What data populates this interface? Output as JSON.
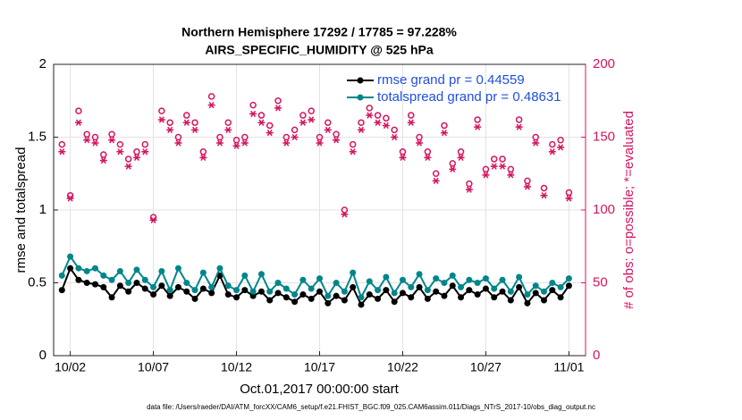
{
  "chart_data": {
    "type": "line",
    "title": "Northern Hemisphere 17292 / 17785 = 97.228%",
    "subtitle": "AIRS_SPECIFIC_HUMIDITY @ 525 hPa",
    "xlabel": "Oct.01,2017 00:00:00 start",
    "ylabel": "rmse and totalspread",
    "y2label": "# of obs: o=possible; *=evaluated",
    "footnote": "data file: /Users/raeder/DAI/ATM_forcXX/CAM6_setup/f.e21.FHIST_BGC.f09_025.CAM6assim.011/Diags_NTrS_2017-10/obs_diag_output.nc",
    "x": [
      0.5,
      1,
      1.5,
      2,
      2.5,
      3,
      3.5,
      4,
      4.5,
      5,
      5.5,
      6,
      6.5,
      7,
      7.5,
      8,
      8.5,
      9,
      9.5,
      10,
      10.5,
      11,
      11.5,
      12,
      12.5,
      13,
      13.5,
      14,
      14.5,
      15,
      15.5,
      16,
      16.5,
      17,
      17.5,
      18,
      18.5,
      19,
      19.5,
      20,
      20.5,
      21,
      21.5,
      22,
      22.5,
      23,
      23.5,
      24,
      24.5,
      25,
      25.5,
      26,
      26.5,
      27,
      27.5,
      28,
      28.5,
      29,
      29.5,
      30,
      30.5,
      31
    ],
    "xlim": [
      0,
      32
    ],
    "xticks": [
      {
        "value": 1,
        "label": "10/02"
      },
      {
        "value": 6,
        "label": "10/07"
      },
      {
        "value": 11,
        "label": "10/12"
      },
      {
        "value": 16,
        "label": "10/17"
      },
      {
        "value": 21,
        "label": "10/22"
      },
      {
        "value": 26,
        "label": "10/27"
      },
      {
        "value": 31,
        "label": "11/01"
      }
    ],
    "ylim": [
      0,
      2
    ],
    "yticks": [
      0,
      0.5,
      1,
      1.5,
      2
    ],
    "y2lim": [
      0,
      200
    ],
    "y2ticks": [
      0,
      50,
      100,
      150,
      200
    ],
    "grid": true,
    "legend": "top-right",
    "legend_color": "#1f4fe0",
    "y2color": "#d6145f",
    "series": [
      {
        "name": "rmse grand pr = 0.44559",
        "color": "#000000",
        "marker": "line-dot",
        "values": [
          0.45,
          0.6,
          0.52,
          0.5,
          0.49,
          0.47,
          0.4,
          0.48,
          0.44,
          0.5,
          0.46,
          0.42,
          0.48,
          0.41,
          0.47,
          0.44,
          0.39,
          0.46,
          0.43,
          0.55,
          0.42,
          0.4,
          0.45,
          0.41,
          0.44,
          0.38,
          0.43,
          0.4,
          0.37,
          0.42,
          0.39,
          0.44,
          0.36,
          0.41,
          0.38,
          0.47,
          0.35,
          0.42,
          0.39,
          0.45,
          0.37,
          0.43,
          0.4,
          0.47,
          0.39,
          0.44,
          0.41,
          0.48,
          0.4,
          0.45,
          0.42,
          0.46,
          0.4,
          0.44,
          0.38,
          0.47,
          0.36,
          0.43,
          0.38,
          0.45,
          0.4,
          0.48
        ]
      },
      {
        "name": "totalspread grand pr = 0.48631",
        "color": "#00868b",
        "marker": "line-dot",
        "values": [
          0.55,
          0.68,
          0.6,
          0.58,
          0.6,
          0.55,
          0.52,
          0.58,
          0.5,
          0.59,
          0.52,
          0.47,
          0.58,
          0.45,
          0.6,
          0.5,
          0.45,
          0.57,
          0.47,
          0.6,
          0.48,
          0.45,
          0.55,
          0.44,
          0.56,
          0.44,
          0.5,
          0.46,
          0.42,
          0.52,
          0.46,
          0.53,
          0.41,
          0.5,
          0.44,
          0.57,
          0.4,
          0.51,
          0.45,
          0.54,
          0.43,
          0.52,
          0.47,
          0.56,
          0.45,
          0.53,
          0.5,
          0.55,
          0.47,
          0.52,
          0.5,
          0.53,
          0.46,
          0.52,
          0.44,
          0.54,
          0.42,
          0.48,
          0.44,
          0.5,
          0.47,
          0.53
        ]
      },
      {
        "color": "#d6145f",
        "marker": "circle",
        "axis": "y2",
        "values": [
          145,
          110,
          168,
          152,
          150,
          138,
          152,
          145,
          135,
          140,
          145,
          95,
          168,
          160,
          150,
          165,
          160,
          140,
          178,
          150,
          160,
          148,
          150,
          172,
          165,
          158,
          175,
          150,
          155,
          165,
          168,
          150,
          160,
          152,
          100,
          145,
          160,
          170,
          165,
          163,
          155,
          140,
          165,
          150,
          140,
          125,
          158,
          132,
          140,
          118,
          162,
          128,
          135,
          135,
          128,
          162,
          120,
          150,
          115,
          145,
          148,
          112
        ]
      },
      {
        "color": "#d6145f",
        "marker": "asterisk",
        "axis": "y2",
        "values": [
          140,
          108,
          160,
          148,
          146,
          134,
          148,
          140,
          130,
          136,
          140,
          93,
          162,
          155,
          146,
          160,
          155,
          136,
          172,
          146,
          155,
          144,
          146,
          166,
          160,
          153,
          170,
          146,
          150,
          160,
          162,
          146,
          155,
          148,
          97,
          140,
          155,
          165,
          160,
          158,
          150,
          136,
          160,
          146,
          136,
          120,
          153,
          128,
          136,
          114,
          157,
          124,
          130,
          130,
          124,
          157,
          116,
          146,
          110,
          140,
          143,
          108
        ]
      }
    ]
  }
}
